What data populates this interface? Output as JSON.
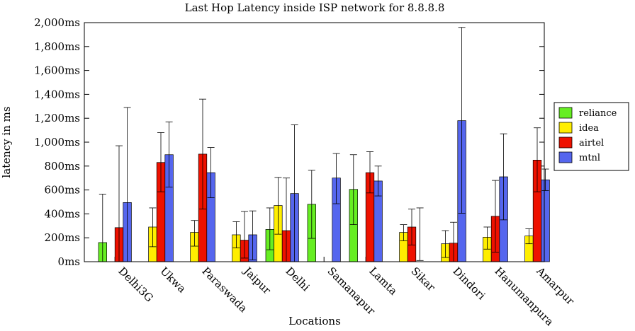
{
  "chart_data": {
    "type": "bar",
    "title": "Last Hop Latency inside ISP network for 8.8.8.8",
    "xlabel": "Locations",
    "ylabel": "latency in ms",
    "ylim": [
      0,
      2000
    ],
    "y_ticks": [
      0,
      200,
      400,
      600,
      800,
      1000,
      1200,
      1400,
      1600,
      1800,
      2000
    ],
    "y_tick_labels": [
      "0ms",
      "200ms",
      "400ms",
      "600ms",
      "800ms",
      "1,000ms",
      "1,200ms",
      "1,400ms",
      "1,600ms",
      "1,800ms",
      "2,000ms"
    ],
    "legend_position": "right",
    "grid": false,
    "categories": [
      "Delhi3G",
      "Ukwa",
      "Paraswada",
      "Jaipur",
      "Delhi",
      "Samanapur",
      "Lamta",
      "Sikar",
      "Dindori",
      "Hanumanpura",
      "Amarpur"
    ],
    "series": [
      {
        "name": "reliance",
        "color": "#66ee22",
        "values": [
          160,
          null,
          null,
          null,
          270,
          480,
          605,
          null,
          null,
          null,
          null
        ],
        "err_low": [
          0,
          null,
          null,
          null,
          100,
          195,
          310,
          null,
          null,
          null,
          null
        ],
        "err_high": [
          565,
          null,
          null,
          null,
          450,
          765,
          895,
          null,
          null,
          null,
          null
        ]
      },
      {
        "name": "idea",
        "color": "#ffee00",
        "values": [
          null,
          290,
          245,
          225,
          470,
          0,
          null,
          245,
          150,
          205,
          215
        ],
        "err_low": [
          null,
          125,
          130,
          115,
          230,
          0,
          null,
          175,
          35,
          105,
          150
        ],
        "err_high": [
          null,
          450,
          345,
          335,
          705,
          0,
          null,
          310,
          260,
          290,
          275
        ]
      },
      {
        "name": "airtel",
        "color": "#ee1100",
        "values": [
          285,
          830,
          900,
          180,
          260,
          null,
          745,
          290,
          155,
          380,
          850
        ],
        "err_low": [
          0,
          585,
          440,
          30,
          0,
          null,
          575,
          140,
          0,
          80,
          585
        ],
        "err_high": [
          970,
          1080,
          1360,
          420,
          700,
          null,
          920,
          440,
          330,
          680,
          1120
        ]
      },
      {
        "name": "mtnl",
        "color": "#5566ee",
        "values": [
          495,
          895,
          745,
          225,
          570,
          700,
          675,
          null,
          1180,
          710,
          685
        ],
        "err_low": [
          0,
          625,
          535,
          15,
          0,
          485,
          550,
          10,
          405,
          350,
          595
        ],
        "err_high": [
          1290,
          1170,
          955,
          425,
          1145,
          905,
          800,
          450,
          1960,
          1070,
          775
        ]
      }
    ]
  }
}
